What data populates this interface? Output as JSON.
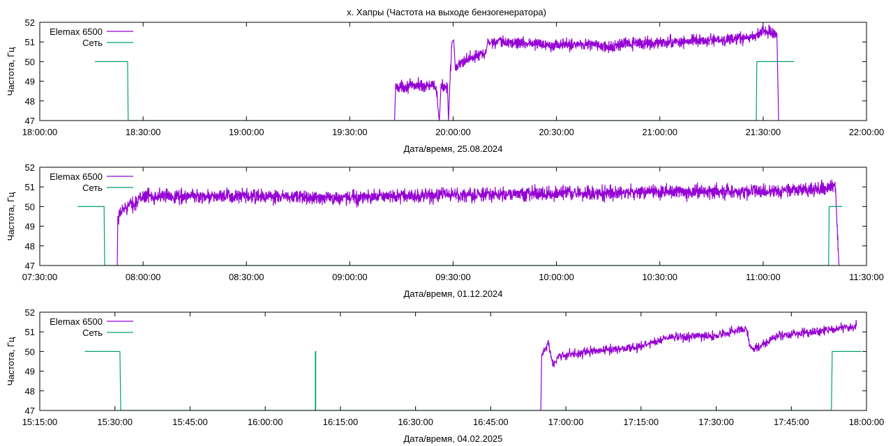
{
  "title": "х. Хапры (Частота на выходе бензогенератора)",
  "colors": {
    "generator": "#9400d3",
    "grid": "#009e73",
    "frame": "#000000"
  },
  "chart_data": [
    {
      "type": "line",
      "xlabel": "Дата/время, 25.08.2024",
      "ylabel": "Частота, Гц",
      "xlim": [
        "18:00:00",
        "22:00:00"
      ],
      "ylim": [
        47,
        52
      ],
      "xticks": [
        "18:00:00",
        "18:30:00",
        "19:00:00",
        "19:30:00",
        "20:00:00",
        "20:30:00",
        "21:00:00",
        "21:30:00",
        "22:00:00"
      ],
      "yticks": [
        47,
        48,
        49,
        50,
        51,
        52
      ],
      "grid": false,
      "legend": "top-left",
      "series": [
        {
          "name": "Elemax 6500",
          "color": "#9400d3",
          "noise": 0.15,
          "points": [
            [
              "19:43:00",
              47
            ],
            [
              "19:43:20",
              48.7
            ],
            [
              "19:50:00",
              48.8
            ],
            [
              "19:55:00",
              48.75
            ],
            [
              "19:56:00",
              47
            ],
            [
              "19:56:30",
              48.7
            ],
            [
              "19:58:20",
              48.8
            ],
            [
              "19:58:40",
              47
            ],
            [
              "19:59:00",
              48.8
            ],
            [
              "19:59:40",
              51.0
            ],
            [
              "20:00:10",
              51.1
            ],
            [
              "20:00:40",
              49.5
            ],
            [
              "20:02:00",
              49.9
            ],
            [
              "20:05:00",
              50.2
            ],
            [
              "20:09:30",
              50.4
            ],
            [
              "20:10:00",
              51.0
            ],
            [
              "20:20:00",
              50.95
            ],
            [
              "20:30:00",
              50.85
            ],
            [
              "20:40:00",
              50.9
            ],
            [
              "20:45:00",
              50.7
            ],
            [
              "20:50:00",
              50.9
            ],
            [
              "21:00:00",
              50.95
            ],
            [
              "21:10:00",
              51.05
            ],
            [
              "21:20:00",
              51.1
            ],
            [
              "21:25:00",
              51.2
            ],
            [
              "21:28:00",
              51.3
            ],
            [
              "21:30:00",
              51.6
            ],
            [
              "21:34:00",
              51.4
            ],
            [
              "21:34:30",
              47
            ]
          ]
        },
        {
          "name": "Сеть",
          "color": "#009e73",
          "noise": 0,
          "points": [
            [
              "18:16:00",
              50
            ],
            [
              "18:25:30",
              50
            ],
            [
              "18:25:40",
              47
            ],
            [
              "21:28:00",
              47
            ],
            [
              "21:28:10",
              50
            ],
            [
              "21:39:00",
              50
            ]
          ]
        }
      ]
    },
    {
      "type": "line",
      "xlabel": "Дата/время, 01.12.2024",
      "ylabel": "Частота, Гц",
      "xlim": [
        "07:30:00",
        "11:30:00"
      ],
      "ylim": [
        47,
        52
      ],
      "xticks": [
        "07:30:00",
        "08:00:00",
        "08:30:00",
        "09:00:00",
        "09:30:00",
        "10:00:00",
        "10:30:00",
        "11:00:00",
        "11:30:00"
      ],
      "yticks": [
        47,
        48,
        49,
        50,
        51,
        52
      ],
      "grid": false,
      "legend": "top-left",
      "series": [
        {
          "name": "Elemax 6500",
          "color": "#9400d3",
          "noise": 0.18,
          "points": [
            [
              "07:52:30",
              47
            ],
            [
              "07:52:40",
              49.2
            ],
            [
              "07:53:30",
              49.7
            ],
            [
              "07:55:00",
              50.0
            ],
            [
              "07:58:00",
              50.2
            ],
            [
              "08:00:00",
              50.55
            ],
            [
              "08:30:00",
              50.5
            ],
            [
              "09:00:00",
              50.45
            ],
            [
              "09:30:00",
              50.6
            ],
            [
              "10:00:00",
              50.65
            ],
            [
              "10:30:00",
              50.75
            ],
            [
              "11:00:00",
              50.75
            ],
            [
              "11:15:00",
              50.9
            ],
            [
              "11:21:00",
              51.0
            ],
            [
              "11:22:00",
              47
            ]
          ]
        },
        {
          "name": "Сеть",
          "color": "#009e73",
          "noise": 0,
          "points": [
            [
              "07:41:00",
              50
            ],
            [
              "07:48:40",
              50
            ],
            [
              "07:48:50",
              47
            ],
            [
              "11:19:00",
              47
            ],
            [
              "11:19:10",
              50
            ],
            [
              "11:23:00",
              50
            ]
          ]
        }
      ]
    },
    {
      "type": "line",
      "xlabel": "Дата/время, 04.02.2025",
      "ylabel": "Частота, Гц",
      "xlim": [
        "15:15:00",
        "18:00:00"
      ],
      "ylim": [
        47,
        52
      ],
      "xticks": [
        "15:15:00",
        "15:30:00",
        "15:45:00",
        "16:00:00",
        "16:15:00",
        "16:30:00",
        "16:45:00",
        "17:00:00",
        "17:15:00",
        "17:30:00",
        "17:45:00",
        "18:00:00"
      ],
      "yticks": [
        47,
        48,
        49,
        50,
        51,
        52
      ],
      "grid": false,
      "legend": "top-left",
      "series": [
        {
          "name": "Elemax 6500",
          "color": "#9400d3",
          "noise": 0.12,
          "points": [
            [
              "16:55:00",
              47
            ],
            [
              "16:55:10",
              49.8
            ],
            [
              "16:56:30",
              50.4
            ],
            [
              "16:57:30",
              49.3
            ],
            [
              "16:59:00",
              49.8
            ],
            [
              "17:05:00",
              50.0
            ],
            [
              "17:15:00",
              50.25
            ],
            [
              "17:20:00",
              50.7
            ],
            [
              "17:30:00",
              50.8
            ],
            [
              "17:36:00",
              51.2
            ],
            [
              "17:37:00",
              50.1
            ],
            [
              "17:40:00",
              50.4
            ],
            [
              "17:42:00",
              50.8
            ],
            [
              "17:50:00",
              51.0
            ],
            [
              "17:58:00",
              51.3
            ]
          ]
        },
        {
          "name": "Сеть",
          "color": "#009e73",
          "noise": 0,
          "points": [
            [
              "15:24:00",
              50
            ],
            [
              "15:31:00",
              50
            ],
            [
              "15:31:10",
              47
            ],
            [
              "16:10:00",
              47
            ],
            [
              "16:10:00",
              50
            ],
            [
              "16:10:05",
              50
            ],
            [
              "16:10:05",
              47
            ],
            [
              "17:53:00",
              47
            ],
            [
              "17:53:10",
              50
            ],
            [
              "17:59:00",
              50
            ]
          ]
        }
      ]
    }
  ]
}
